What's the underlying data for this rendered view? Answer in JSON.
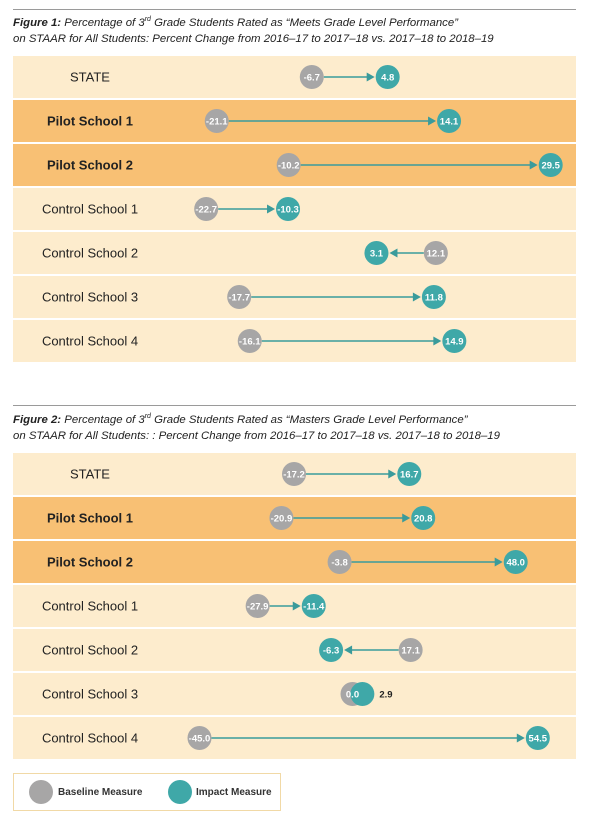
{
  "colors": {
    "baseline": "#a7a6a6",
    "impact": "#3fa8a8",
    "row_light": "#fdeccd",
    "row_pilot": "#f8c074",
    "arrow": "#3a9b9b"
  },
  "figure1": {
    "label": "Figure 1:",
    "title_pre": " Percentage of 3",
    "title_sup": "rd",
    "title_mid": " Grade Students Rated as “Meets Grade Level Performance”",
    "title_line2": "on STAAR for All Students: Percent Change from 2016–17 to 2017–18 vs. 2017–18 to 2018–19"
  },
  "figure2": {
    "label": "Figure 2:",
    "title_pre": " Percentage of 3",
    "title_sup": "rd",
    "title_mid": " Grade Students Rated as “Masters Grade Level Performance”",
    "title_line2": "on STAAR for All Students: : Percent Change from 2016–17 to 2017–18 vs. 2017–18 to 2018–19"
  },
  "legend": {
    "baseline_label": "Baseline Measure",
    "impact_label": "Impact Measure"
  },
  "chart_data": [
    {
      "type": "dumbbell",
      "title": "Percentage of 3rd Grade Students Rated as “Meets Grade Level Performance” on STAAR for All Students: Percent Change from 2016–17 to 2017–18 vs. 2017–18 to 2018–19",
      "categories": [
        "STATE",
        "Pilot School 1",
        "Pilot School 2",
        "Control School 1",
        "Control School 2",
        "Control School 3",
        "Control School 4"
      ],
      "pilot": [
        false,
        true,
        true,
        false,
        false,
        false,
        false
      ],
      "series": [
        {
          "name": "Baseline Measure",
          "values": [
            -6.7,
            -21.1,
            -10.2,
            -22.7,
            12.1,
            -17.7,
            -16.1
          ]
        },
        {
          "name": "Impact Measure",
          "values": [
            4.8,
            14.1,
            29.5,
            -10.3,
            3.1,
            11.8,
            14.9
          ]
        }
      ],
      "value_labels": {
        "baseline": [
          "-6.7",
          "-21.1",
          "-10.2",
          "-22.7",
          "12.1",
          "-17.7",
          "-16.1"
        ],
        "impact": [
          "4.8",
          "14.1",
          "29.5",
          "-10.3",
          "3.1",
          "11.8",
          "14.9"
        ]
      }
    },
    {
      "type": "dumbbell",
      "title": "Percentage of 3rd Grade Students Rated as “Masters Grade Level Performance” on STAAR for All Students: Percent Change from 2016–17 to 2017–18 vs. 2017–18 to 2018–19",
      "categories": [
        "STATE",
        "Pilot School 1",
        "Pilot School 2",
        "Control School 1",
        "Control School 2",
        "Control School 3",
        "Control School 4"
      ],
      "pilot": [
        false,
        true,
        true,
        false,
        false,
        false,
        false
      ],
      "series": [
        {
          "name": "Baseline Measure",
          "values": [
            -17.2,
            -20.9,
            -3.8,
            -27.9,
            17.1,
            0.0,
            -45.0
          ]
        },
        {
          "name": "Impact Measure",
          "values": [
            16.7,
            20.8,
            48.0,
            -11.4,
            -6.3,
            2.9,
            54.5
          ]
        }
      ],
      "value_labels": {
        "baseline": [
          "-17.2",
          "-20.9",
          "-3.8",
          "-27.9",
          "17.1",
          "0.0",
          "-45.0"
        ],
        "impact": [
          "16.7",
          "20.8",
          "48.0",
          "-11.4",
          "-6.3",
          "2.9",
          "54.5"
        ]
      }
    }
  ]
}
